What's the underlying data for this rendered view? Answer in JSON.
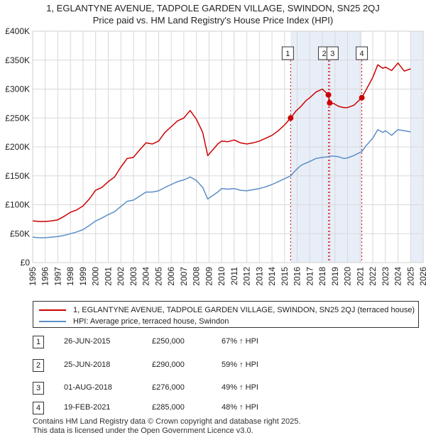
{
  "title_line1": "1, EGLANTYNE AVENUE, TADPOLE GARDEN VILLAGE, SWINDON, SN25 2QJ",
  "title_line2": "Price paid vs. HM Land Registry's House Price Index (HPI)",
  "colors": {
    "property": "#cc0000",
    "hpi": "#5b8ec8",
    "marker_line": "#cc0000",
    "shade": "#e8eef8"
  },
  "legend": {
    "property_label": "1, EGLANTYNE AVENUE, TADPOLE GARDEN VILLAGE, SWINDON, SN25 2QJ (terraced house)",
    "hpi_label": "HPI: Average price, terraced house, Swindon"
  },
  "transactions": [
    {
      "num": "1",
      "date": "26-JUN-2015",
      "price": "£250,000",
      "hpi": "67% ↑ HPI"
    },
    {
      "num": "2",
      "date": "25-JUN-2018",
      "price": "£290,000",
      "hpi": "59% ↑ HPI"
    },
    {
      "num": "3",
      "date": "01-AUG-2018",
      "price": "£276,000",
      "hpi": "49% ↑ HPI"
    },
    {
      "num": "4",
      "date": "19-FEB-2021",
      "price": "£285,000",
      "hpi": "48% ↑ HPI"
    }
  ],
  "footer_line1": "Contains HM Land Registry data © Crown copyright and database right 2025.",
  "footer_line2": "This data is licensed under the Open Government Licence v3.0.",
  "chart_data": {
    "type": "line",
    "title": "Price paid vs. HM Land Registry's House Price Index (HPI)",
    "xlabel": "",
    "ylabel": "",
    "xlim": [
      1995,
      2026
    ],
    "ylim": [
      0,
      400000
    ],
    "y_ticks": [
      {
        "value": 0,
        "label": "£0"
      },
      {
        "value": 50000,
        "label": "£50K"
      },
      {
        "value": 100000,
        "label": "£100K"
      },
      {
        "value": 150000,
        "label": "£150K"
      },
      {
        "value": 200000,
        "label": "£200K"
      },
      {
        "value": 250000,
        "label": "£250K"
      },
      {
        "value": 300000,
        "label": "£300K"
      },
      {
        "value": 350000,
        "label": "£350K"
      },
      {
        "value": 400000,
        "label": "£400K"
      }
    ],
    "x_ticks": [
      "1995",
      "1996",
      "1997",
      "1998",
      "1999",
      "2000",
      "2001",
      "2002",
      "2003",
      "2004",
      "2005",
      "2006",
      "2007",
      "2008",
      "2009",
      "2010",
      "2011",
      "2012",
      "2013",
      "2014",
      "2015",
      "2016",
      "2017",
      "2018",
      "2019",
      "2020",
      "2021",
      "2022",
      "2023",
      "2024",
      "2025",
      "2026"
    ],
    "grid": true,
    "shaded_ranges": [
      [
        2015.48,
        2021.13
      ],
      [
        2025.0,
        2026.0
      ]
    ],
    "markers": [
      {
        "label": "1",
        "x": 2015.48,
        "y": 250000
      },
      {
        "label": "2",
        "x": 2018.48,
        "y": 290000
      },
      {
        "label": "3",
        "x": 2018.58,
        "y": 276000
      },
      {
        "label": "4",
        "x": 2021.13,
        "y": 285000
      }
    ],
    "series": [
      {
        "name": "1, EGLANTYNE AVENUE, TADPOLE GARDEN VILLAGE, SWINDON, SN25 2QJ (terraced house)",
        "x": [
          1995.0,
          1995.5,
          1996.0,
          1996.5,
          1997.0,
          1997.5,
          1998.0,
          1998.5,
          1999.0,
          1999.5,
          2000.0,
          2000.5,
          2001.0,
          2001.5,
          2002.0,
          2002.5,
          2003.0,
          2003.5,
          2004.0,
          2004.5,
          2005.0,
          2005.5,
          2006.0,
          2006.5,
          2007.0,
          2007.5,
          2008.0,
          2008.5,
          2008.9,
          2009.3,
          2009.7,
          2010.0,
          2010.5,
          2011.0,
          2011.5,
          2012.0,
          2012.5,
          2013.0,
          2013.5,
          2014.0,
          2014.5,
          2015.0,
          2015.48,
          2015.9,
          2016.3,
          2016.7,
          2017.0,
          2017.5,
          2018.0,
          2018.48,
          2018.58,
          2018.9,
          2019.3,
          2019.7,
          2020.0,
          2020.5,
          2021.13,
          2021.5,
          2022.0,
          2022.4,
          2022.8,
          2023.0,
          2023.5,
          2024.0,
          2024.5,
          2025.0
        ],
        "values": [
          72000,
          71000,
          71000,
          72000,
          74000,
          80000,
          87000,
          91000,
          98000,
          110000,
          125000,
          130000,
          140000,
          148000,
          165000,
          180000,
          182000,
          195000,
          207000,
          205000,
          210000,
          225000,
          235000,
          245000,
          250000,
          263000,
          248000,
          225000,
          185000,
          195000,
          205000,
          210000,
          209000,
          212000,
          207000,
          205000,
          207000,
          210000,
          215000,
          220000,
          228000,
          238000,
          250000,
          262000,
          270000,
          280000,
          285000,
          295000,
          300000,
          290000,
          276000,
          275000,
          270000,
          268000,
          268000,
          272000,
          285000,
          300000,
          320000,
          342000,
          336000,
          338000,
          332000,
          345000,
          331000,
          335000
        ]
      },
      {
        "name": "HPI: Average price, terraced house, Swindon",
        "x": [
          1995.0,
          1995.5,
          1996.0,
          1996.5,
          1997.0,
          1997.5,
          1998.0,
          1998.5,
          1999.0,
          1999.5,
          2000.0,
          2000.5,
          2001.0,
          2001.5,
          2002.0,
          2002.5,
          2003.0,
          2003.5,
          2004.0,
          2004.5,
          2005.0,
          2005.5,
          2006.0,
          2006.5,
          2007.0,
          2007.5,
          2008.0,
          2008.5,
          2008.9,
          2009.3,
          2009.7,
          2010.0,
          2010.5,
          2011.0,
          2011.5,
          2012.0,
          2012.5,
          2013.0,
          2013.5,
          2014.0,
          2014.5,
          2015.0,
          2015.48,
          2015.9,
          2016.3,
          2016.7,
          2017.0,
          2017.5,
          2018.0,
          2018.48,
          2018.58,
          2018.9,
          2019.3,
          2019.7,
          2020.0,
          2020.5,
          2021.13,
          2021.5,
          2022.0,
          2022.4,
          2022.8,
          2023.0,
          2023.5,
          2024.0,
          2024.5,
          2025.0
        ],
        "values": [
          44000,
          43000,
          43000,
          44000,
          45000,
          47000,
          50000,
          53000,
          57000,
          64000,
          72000,
          77000,
          83000,
          88000,
          97000,
          106000,
          108000,
          115000,
          122000,
          122000,
          124000,
          130000,
          135000,
          140000,
          143000,
          148000,
          142000,
          130000,
          110000,
          116000,
          122000,
          128000,
          127000,
          128000,
          125000,
          124000,
          126000,
          128000,
          131000,
          135000,
          140000,
          145000,
          150000,
          160000,
          168000,
          172000,
          175000,
          180000,
          182000,
          183000,
          184000,
          184000,
          183000,
          180000,
          181000,
          185000,
          192000,
          203000,
          215000,
          230000,
          225000,
          228000,
          220000,
          230000,
          228000,
          226000
        ]
      }
    ]
  }
}
